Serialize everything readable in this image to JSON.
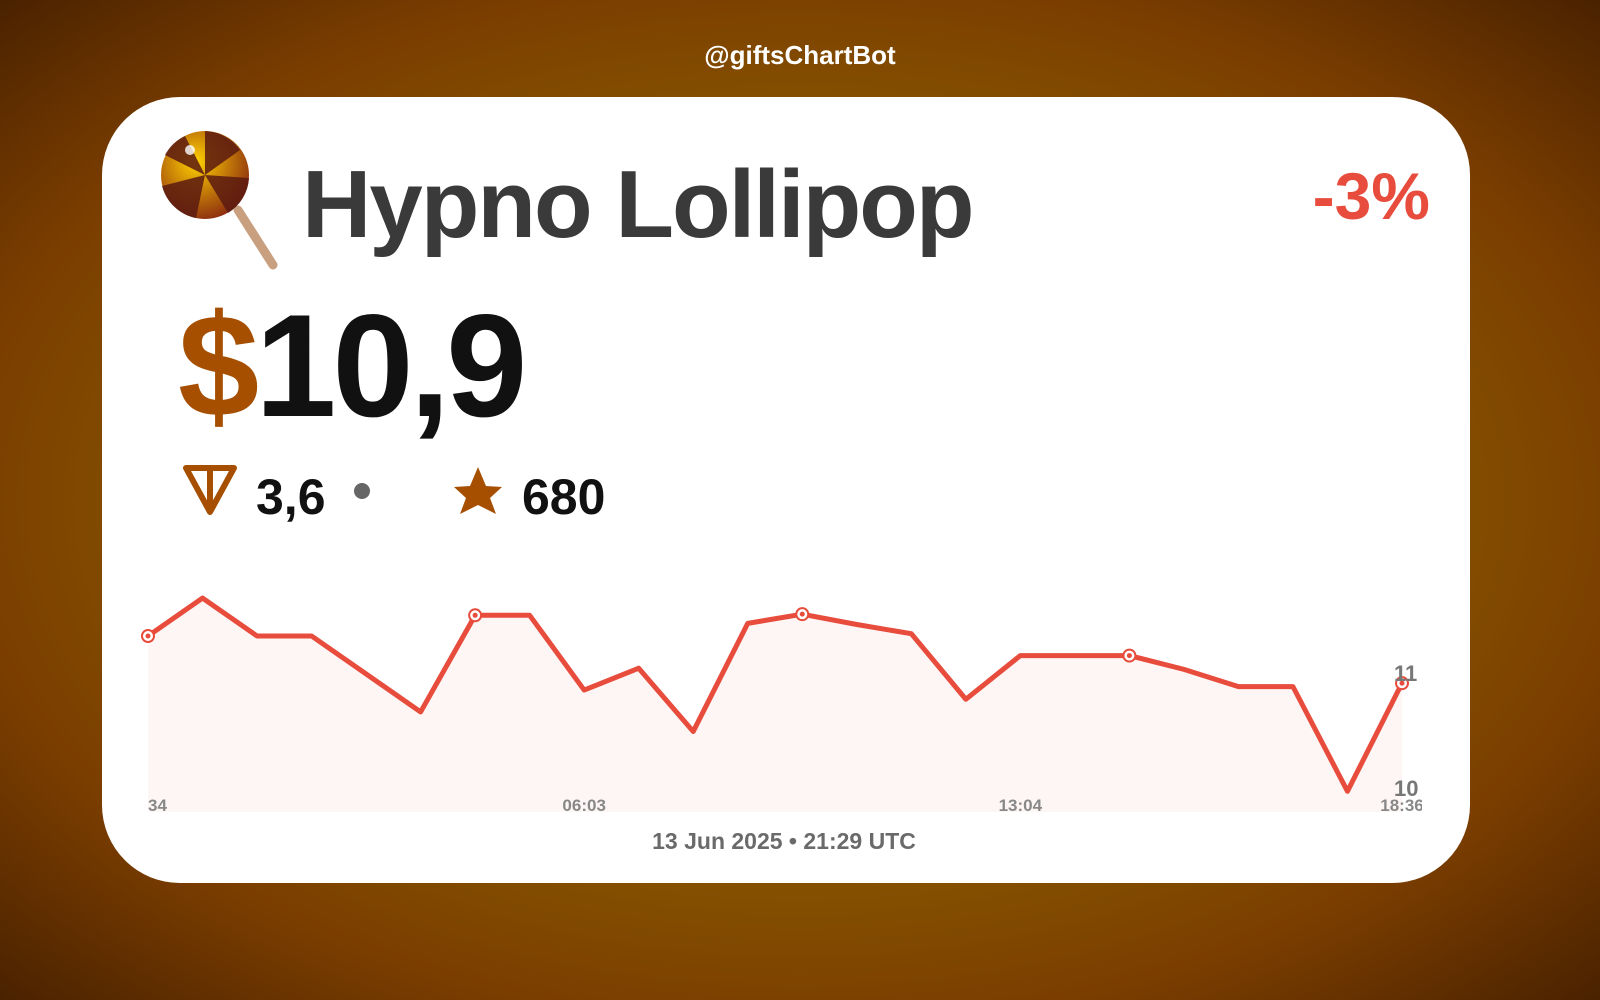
{
  "header": {
    "bot": "@giftsChartBot",
    "title": "Hypno Lollipop",
    "change": "-3%",
    "currency": "$",
    "price": "10,9",
    "ton_price": "3,6",
    "stars_price": "680",
    "footer": "13 Jun 2025 • 21:29 UTC"
  },
  "chart_data": {
    "type": "line",
    "categories": [
      "34",
      null,
      null,
      null,
      null,
      null,
      null,
      null,
      "06:03",
      null,
      null,
      null,
      null,
      null,
      null,
      null,
      "13:04",
      null,
      null,
      null,
      null,
      null,
      null,
      "18:36"
    ],
    "series": [
      {
        "name": null,
        "color": "#e74c3c",
        "values": [
          11.32,
          11.65,
          11.32,
          11.32,
          10.99,
          10.66,
          11.5,
          11.5,
          10.85,
          11.04,
          10.49,
          11.43,
          11.51,
          11.42,
          11.34,
          10.77,
          11.15,
          11.15,
          11.15,
          11.03,
          10.88,
          10.88,
          9.97,
          10.91
        ]
      }
    ],
    "ylim": [
      9.79,
      11.72
    ],
    "yticks": [
      10,
      11
    ],
    "grid": false
  }
}
